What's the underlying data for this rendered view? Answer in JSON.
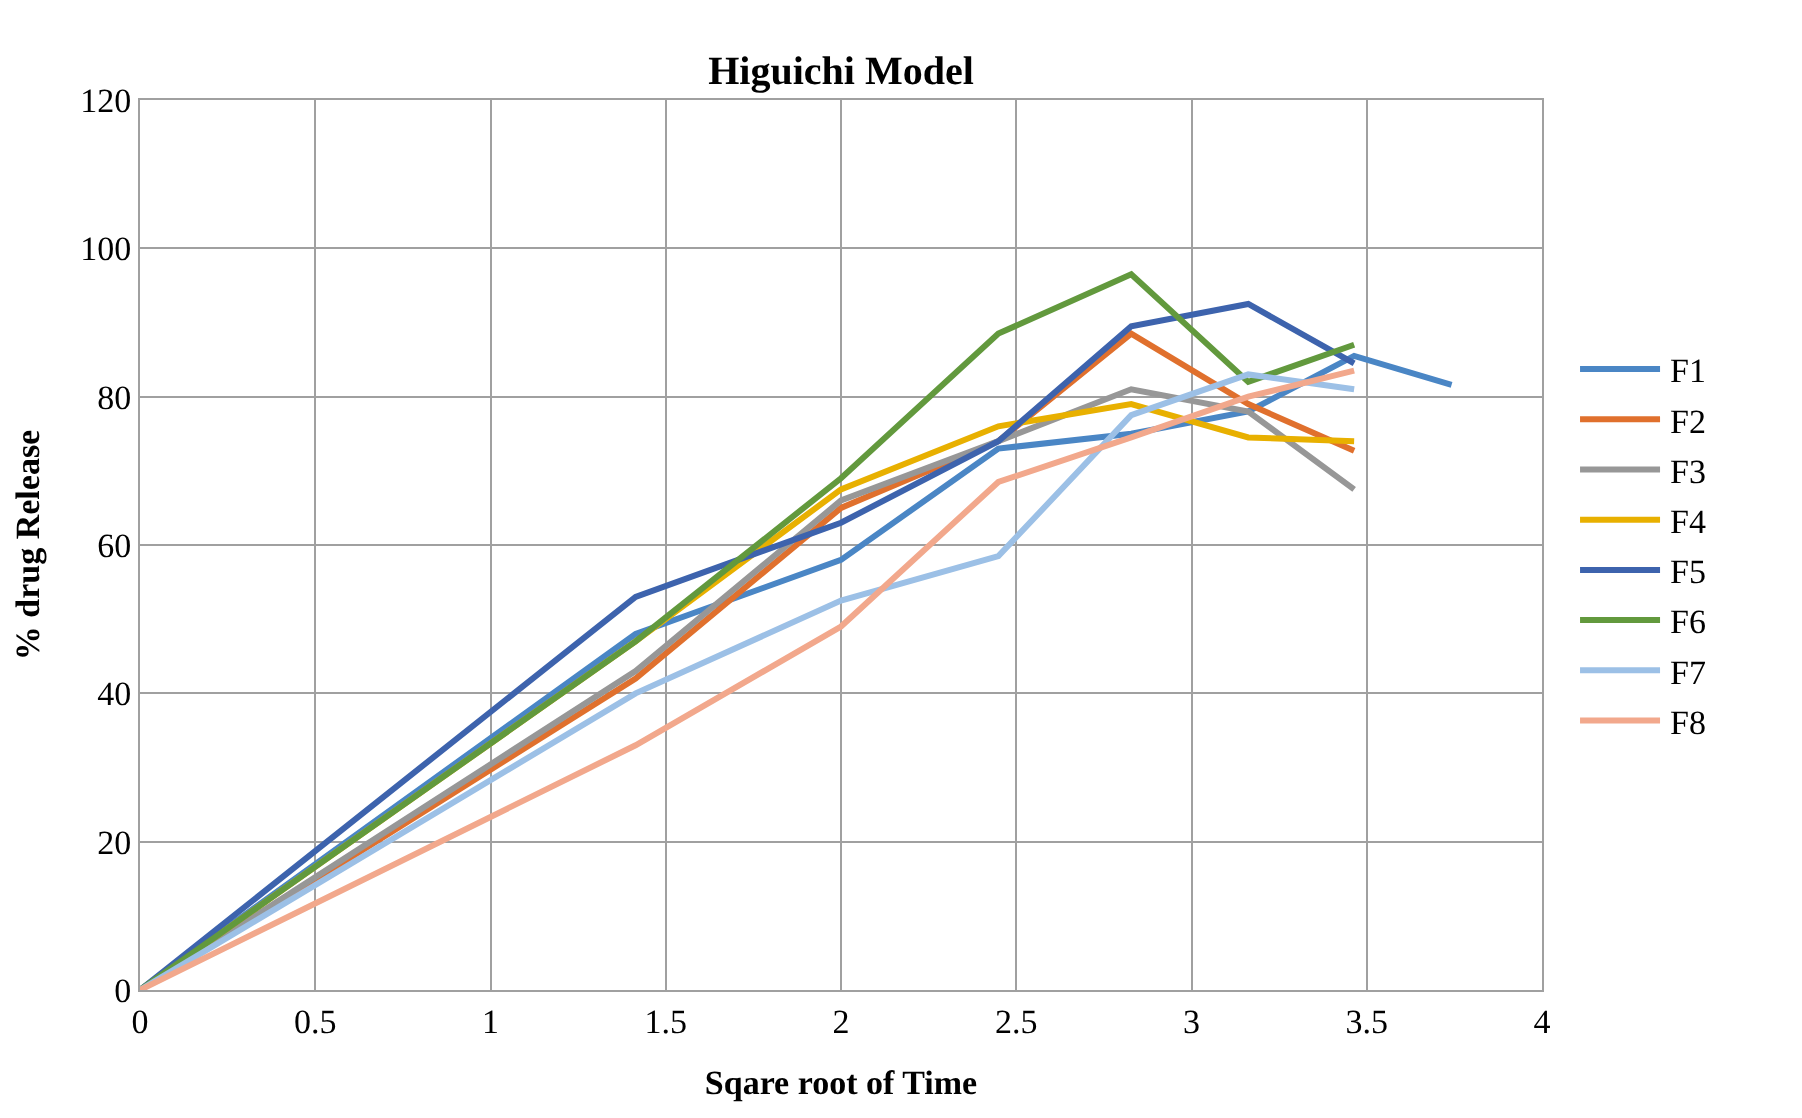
{
  "chart_data": {
    "type": "line",
    "title": "Higuichi Model",
    "xlabel": "Sqare root of Time",
    "ylabel": "% drug Release",
    "x": [
      0,
      1.414,
      2,
      2.449,
      2.828,
      3.162,
      3.464
    ],
    "xlim": [
      0,
      4
    ],
    "xticks": [
      0,
      0.5,
      1,
      1.5,
      2,
      2.5,
      3,
      3.5,
      4
    ],
    "ylim": [
      0,
      120
    ],
    "yticks": [
      0,
      20,
      40,
      60,
      80,
      100,
      120
    ],
    "grid": true,
    "legend": "right",
    "marker": "none",
    "line_style": "solid",
    "series": [
      {
        "name": "F1",
        "color": "#4a86c5",
        "x": [
          0,
          1.414,
          2,
          2.449,
          2.828,
          3.162,
          3.464,
          3.742
        ],
        "values": [
          0,
          48,
          58,
          73,
          75,
          78,
          85.5,
          81.6
        ]
      },
      {
        "name": "F2",
        "color": "#e0702d",
        "values": [
          0,
          42,
          65,
          74,
          88.5,
          79,
          72.7
        ]
      },
      {
        "name": "F3",
        "color": "#979797",
        "values": [
          0,
          43,
          66,
          74,
          81,
          78,
          67.5
        ]
      },
      {
        "name": "F4",
        "color": "#e8b000",
        "values": [
          0,
          47,
          67.5,
          76,
          79,
          74.5,
          74
        ]
      },
      {
        "name": "F5",
        "color": "#3d63ad",
        "values": [
          0,
          53,
          63,
          74,
          89.5,
          92.5,
          84.5
        ]
      },
      {
        "name": "F6",
        "color": "#62993d",
        "values": [
          0,
          47,
          69,
          88.5,
          96.5,
          82,
          87
        ]
      },
      {
        "name": "F7",
        "color": "#9cc0e6",
        "values": [
          0,
          40,
          52.5,
          58.5,
          77.5,
          83,
          81
        ]
      },
      {
        "name": "F8",
        "color": "#f2a88c",
        "values": [
          0,
          33,
          49,
          68.5,
          74.5,
          80,
          83.5
        ]
      }
    ]
  }
}
